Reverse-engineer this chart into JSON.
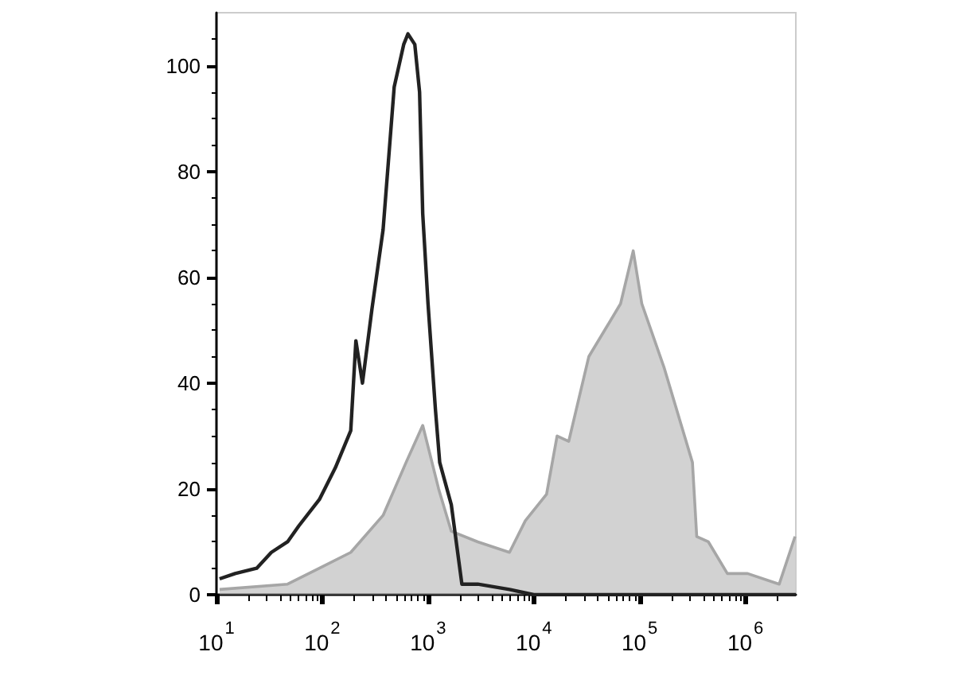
{
  "chart_data": {
    "type": "line",
    "log": "x",
    "grid": false,
    "marker": "none",
    "xlim": [
      10,
      3000000
    ],
    "ylim": [
      0,
      110
    ],
    "xticks": [
      {
        "value": 10,
        "label": "10$^{1}$"
      },
      {
        "value": 100,
        "label": "10$^{2}$"
      },
      {
        "value": 1000,
        "label": "10$^{3}$"
      },
      {
        "value": 10000,
        "label": "10$^{4}$"
      },
      {
        "value": 100000,
        "label": "10$^{5}$"
      },
      {
        "value": 1000000,
        "label": "10$^{6}$"
      }
    ],
    "yticks": [
      0,
      20,
      40,
      60,
      80,
      100
    ],
    "series": [
      {
        "type": "area",
        "color": "#a6a6a6",
        "x": [
          10.7,
          47,
          94,
          186,
          376,
          620,
          891,
          1260,
          1660,
          2950,
          5890,
          8320,
          13200,
          16600,
          21400,
          33100,
          46800,
          66100,
          87100,
          105000,
          170000,
          240000,
          316000,
          347000,
          447000,
          676000,
          1050000,
          2090000,
          2950000
        ],
        "values": [
          1,
          2,
          5,
          8,
          15,
          25,
          32,
          20,
          12,
          10,
          8,
          14,
          19,
          30,
          29,
          45,
          50,
          55,
          65,
          55,
          43,
          33,
          25,
          11,
          10,
          4,
          4,
          2,
          11
        ]
      },
      {
        "type": "line",
        "color": "#222222",
        "x": [
          10.7,
          15,
          24,
          33,
          47,
          60,
          94,
          133,
          186,
          208,
          240,
          295,
          376,
          479,
          589,
          646,
          750,
          832,
          891,
          1000,
          1175,
          1290,
          1660,
          2090,
          2950,
          5890,
          10000,
          3000000
        ],
        "values": [
          3,
          4,
          5,
          8,
          10,
          13,
          18,
          24,
          31,
          48,
          40,
          54,
          69,
          96,
          104,
          106,
          104,
          95,
          72,
          55,
          35,
          25,
          17,
          2,
          2,
          1,
          0,
          0
        ]
      }
    ]
  }
}
